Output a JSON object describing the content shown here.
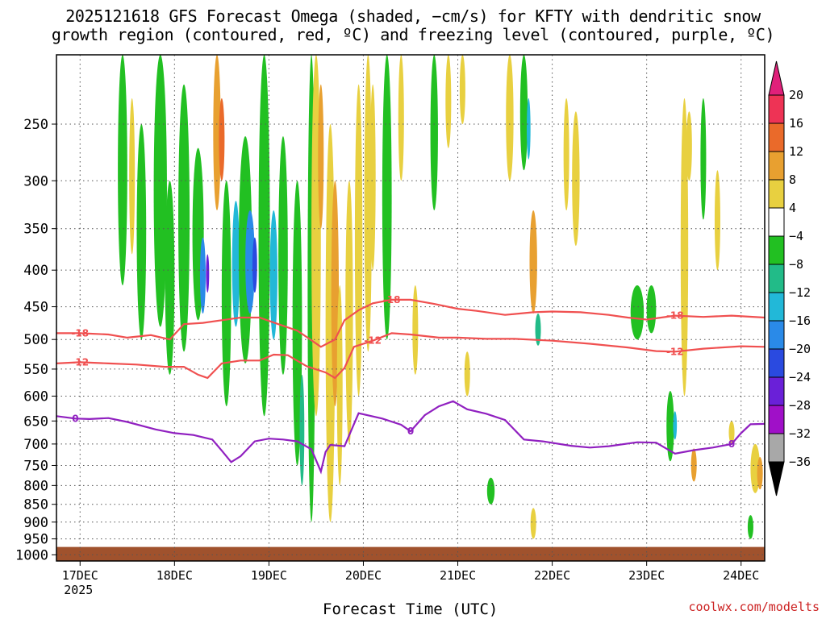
{
  "title": {
    "line1": "2025121618 GFS Forecast Omega (shaded, −cm/s) for KFTY with dendritic snow",
    "line2": "growth region (contoured, red, ºC) and freezing level (contoured, purple, ºC)"
  },
  "credit": "coolwx.com/modelts",
  "chart_data": {
    "type": "heatmap",
    "title": "2025121618 GFS Forecast Omega (shaded, −cm/s) for KFTY with dendritic snow growth region (contoured, red, ºC) and freezing level (contoured, purple, ºC)",
    "xlabel": "Forecast Time (UTC)",
    "ylabel": "",
    "y_log_pressure": true,
    "ylim": [
      1020,
      200
    ],
    "yticks": [
      250,
      300,
      350,
      400,
      450,
      500,
      550,
      600,
      650,
      700,
      750,
      800,
      850,
      900,
      950,
      1000
    ],
    "xlim_days": [
      16.75,
      24.25
    ],
    "xticks": [
      {
        "day": 17,
        "label": "17DEC",
        "sub": "2025"
      },
      {
        "day": 18,
        "label": "18DEC",
        "sub": ""
      },
      {
        "day": 19,
        "label": "19DEC",
        "sub": ""
      },
      {
        "day": 20,
        "label": "20DEC",
        "sub": ""
      },
      {
        "day": 21,
        "label": "21DEC",
        "sub": ""
      },
      {
        "day": 22,
        "label": "22DEC",
        "sub": ""
      },
      {
        "day": 23,
        "label": "23DEC",
        "sub": ""
      },
      {
        "day": 24,
        "label": "24DEC",
        "sub": ""
      }
    ],
    "grid": true,
    "colorbar": {
      "ticks": [
        "20",
        "16",
        "12",
        "8",
        "4",
        "−4",
        "−8",
        "−12",
        "−16",
        "−20",
        "−24",
        "−28",
        "−32",
        "−36"
      ],
      "colors": [
        "#ee3355",
        "#ea6a2a",
        "#e8a030",
        "#e8d040",
        "#ffffff",
        "#22c022",
        "#22bb88",
        "#22b8d8",
        "#2a8ae8",
        "#2a4ae0",
        "#6a20d8",
        "#a010c8",
        "#a8a8a8"
      ],
      "top_arrow_color": "#e0207a",
      "bottom_arrow_color": "#000000"
    },
    "series": [
      {
        "name": "-18",
        "color": "#f05050",
        "x": [
          16.75,
          17.0,
          17.3,
          17.5,
          17.75,
          17.95,
          18.1,
          18.3,
          18.5,
          18.7,
          18.9,
          19.1,
          19.3,
          19.4,
          19.55,
          19.7,
          19.8,
          19.95,
          20.1,
          20.3,
          20.5,
          20.75,
          21.0,
          21.2,
          21.5,
          21.8,
          22.0,
          22.3,
          22.6,
          22.8,
          23.0,
          23.3,
          23.6,
          23.9,
          24.25
        ],
        "y": [
          490,
          490,
          492,
          497,
          493,
          500,
          476,
          474,
          470,
          466,
          466,
          476,
          486,
          496,
          512,
          500,
          470,
          455,
          445,
          440,
          440,
          446,
          453,
          456,
          462,
          458,
          457,
          458,
          462,
          466,
          469,
          463,
          465,
          463,
          466
        ]
      },
      {
        "name": "-12",
        "color": "#f05050",
        "x": [
          16.75,
          17.0,
          17.3,
          17.6,
          17.9,
          18.1,
          18.25,
          18.35,
          18.5,
          18.7,
          18.9,
          19.05,
          19.2,
          19.4,
          19.6,
          19.7,
          19.8,
          19.9,
          20.1,
          20.3,
          20.5,
          20.8,
          21.0,
          21.3,
          21.6,
          22.0,
          22.4,
          22.8,
          23.1,
          23.3,
          23.6,
          24.0,
          24.25
        ],
        "y": [
          540,
          538,
          540,
          542,
          546,
          546,
          560,
          566,
          540,
          535,
          535,
          525,
          526,
          545,
          556,
          566,
          548,
          512,
          502,
          490,
          492,
          497,
          497,
          499,
          499,
          502,
          507,
          513,
          519,
          520,
          515,
          511,
          512
        ]
      },
      {
        "name": "0",
        "color": "#9020c0",
        "x": [
          16.75,
          16.95,
          17.1,
          17.3,
          17.5,
          17.8,
          18.0,
          18.2,
          18.4,
          18.5,
          18.6,
          18.7,
          18.85,
          19.0,
          19.15,
          19.3,
          19.45,
          19.55,
          19.6,
          19.65,
          19.8,
          19.95,
          20.2,
          20.4,
          20.5,
          20.65,
          20.8,
          20.95,
          21.1,
          21.3,
          21.5,
          21.7,
          21.9,
          22.2,
          22.4,
          22.6,
          22.9,
          23.1,
          23.3,
          23.5,
          23.7,
          23.9,
          24.0,
          24.1,
          24.25
        ],
        "y": [
          640,
          645,
          646,
          644,
          652,
          668,
          676,
          680,
          690,
          715,
          742,
          728,
          694,
          688,
          690,
          694,
          712,
          765,
          718,
          702,
          705,
          634,
          645,
          658,
          672,
          638,
          620,
          610,
          626,
          635,
          648,
          690,
          694,
          704,
          708,
          705,
          696,
          697,
          722,
          714,
          708,
          700,
          676,
          657,
          656
        ]
      }
    ]
  }
}
